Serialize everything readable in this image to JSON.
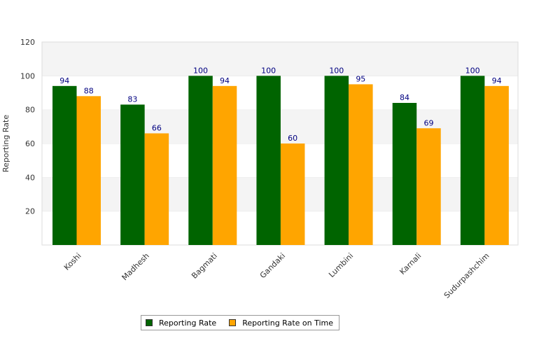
{
  "chart_data": {
    "type": "bar",
    "title": "",
    "xlabel": "",
    "ylabel": "Reporting Rate",
    "ylim": [
      0,
      120
    ],
    "yticks": [
      20,
      40,
      60,
      80,
      100,
      120
    ],
    "grid": "alternating horizontal bands",
    "legend_position": "bottom-center",
    "categories": [
      "Koshi",
      "Madhesh",
      "Bagmati",
      "Gandaki",
      "Lumbini",
      "Karnali",
      "Sudurpashchim"
    ],
    "series": [
      {
        "name": "Reporting Rate",
        "color": "#006400",
        "values": [
          94,
          83,
          100,
          100,
          100,
          84,
          100
        ]
      },
      {
        "name": "Reporting Rate on Time",
        "color": "#FFA500",
        "values": [
          88,
          66,
          94,
          60,
          95,
          69,
          94
        ]
      }
    ]
  }
}
